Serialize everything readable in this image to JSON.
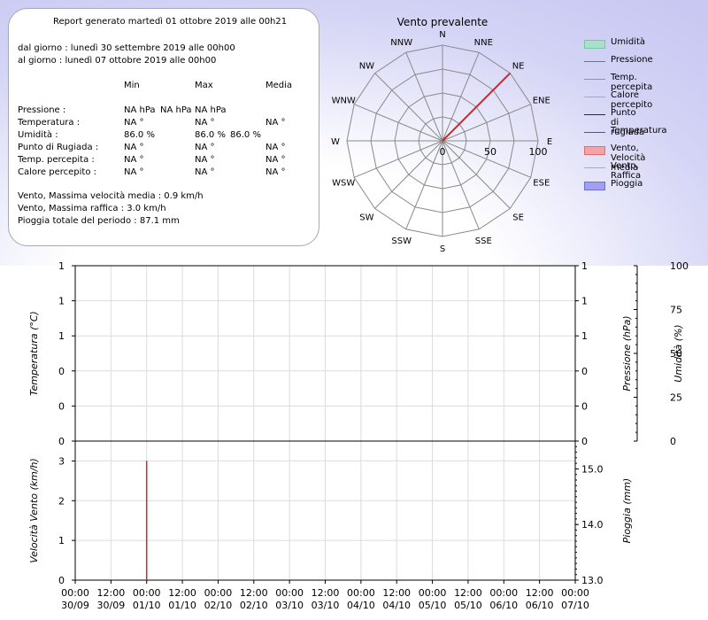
{
  "summary": {
    "title": "Report generato martedì 01 ottobre 2019 alle 00h21",
    "from": "dal giorno : lunedì 30 settembre 2019 alle 00h00",
    "to": "al giorno : lunedì 07 ottobre 2019 alle 00h00",
    "col_min": "Min",
    "col_max": "Max",
    "col_avg": "Media",
    "rows": [
      {
        "label": "Pressione :",
        "min": "NA hPa",
        "max": "NA hPa",
        "avg": "NA hPa"
      },
      {
        "label": "Temperatura :",
        "min": "NA °",
        "max": "NA °",
        "avg": "NA °"
      },
      {
        "label": "Umidità :",
        "min": "86.0 %",
        "max": "86.0 %",
        "avg": "86.0 %"
      },
      {
        "label": "Punto di Rugiada :",
        "min": "NA °",
        "max": "NA °",
        "avg": "NA °"
      },
      {
        "label": "Temp. percepita :",
        "min": "NA °",
        "max": "NA °",
        "avg": "NA °"
      },
      {
        "label": "Calore percepito :",
        "min": "NA °",
        "max": "NA °",
        "avg": "NA °"
      }
    ],
    "wind_avg": "Vento, Massima velocità media : 0.9 km/h",
    "wind_gust": "Vento, Massima raffica : 3.0 km/h",
    "rain_total": "Pioggia totale del periodo : 87.1 mm"
  },
  "legend": [
    {
      "label": "Umidità",
      "color": "#a8e0c8",
      "kind": "fill",
      "edge": "#78c8a8"
    },
    {
      "label": "Pressione",
      "color": "#2e9e4a",
      "kind": "line"
    },
    {
      "label": "Temp. percepita",
      "color": "#8c8cc8",
      "kind": "line"
    },
    {
      "label": "Calore percepito",
      "color": "#f08c8c",
      "kind": "line"
    },
    {
      "label": "Punto di rugiada",
      "color": "#20206e",
      "kind": "line"
    },
    {
      "label": "Temperatura",
      "color": "#e02020",
      "kind": "line"
    },
    {
      "label": "Vento, Velocità media",
      "color": "#f4a4a4",
      "kind": "fill",
      "edge": "#e07070"
    },
    {
      "label": "Vento, Raffica",
      "color": "#f08c8c",
      "kind": "line"
    },
    {
      "label": "Pioggia",
      "color": "#a0a0f0",
      "kind": "fill",
      "edge": "#7070d8"
    }
  ],
  "chart_data": [
    {
      "type": "polar",
      "title": "Vento prevalente",
      "directions": [
        "N",
        "NNE",
        "NE",
        "ENE",
        "E",
        "ESE",
        "SE",
        "SSE",
        "S",
        "SSW",
        "SW",
        "WSW",
        "W",
        "WNW",
        "NW",
        "NNW"
      ],
      "radial_ticks": [
        0,
        50,
        100
      ],
      "rmax": 100,
      "series": [
        {
          "direction": "NE",
          "value": 100,
          "color": "#e02020"
        }
      ]
    },
    {
      "type": "line",
      "x_ticks": [
        "00:00|30/09",
        "12:00|30/09",
        "00:00|01/10",
        "12:00|01/10",
        "00:00|02/10",
        "12:00|02/10",
        "00:00|03/10",
        "12:00|03/10",
        "00:00|04/10",
        "12:00|04/10",
        "00:00|05/10",
        "12:00|05/10",
        "00:00|06/10",
        "12:00|06/10",
        "00:00|07/10"
      ],
      "temperature": {
        "ylabel": "Temperatura (°C)",
        "ticks": [
          "1",
          "1",
          "1",
          "0",
          "0",
          "0"
        ]
      },
      "pressure": {
        "ylabel": "Pressione (hPa)",
        "ticks": [
          "1",
          "1",
          "1",
          "0",
          "0",
          "0"
        ]
      },
      "humidity": {
        "ylabel": "Umidità (%)",
        "ticks": [
          "100",
          "75",
          "50",
          "25",
          "0"
        ],
        "ylim": [
          0,
          100
        ]
      },
      "wind": {
        "ylabel": "Velocità Vento (km/h)",
        "ylim": [
          0,
          3.5
        ],
        "ticks": [
          "0",
          "1",
          "2",
          "3"
        ],
        "series": [
          {
            "name": "Vento, Raffica",
            "points": [
              [
                2,
                3.0
              ],
              [
                2,
                0
              ]
            ]
          }
        ]
      },
      "rain": {
        "ylabel": "Pioggia (mm)",
        "ticks": [
          "13.0",
          "14.0",
          "15.0"
        ],
        "ylim": [
          13,
          15.5
        ]
      }
    }
  ]
}
